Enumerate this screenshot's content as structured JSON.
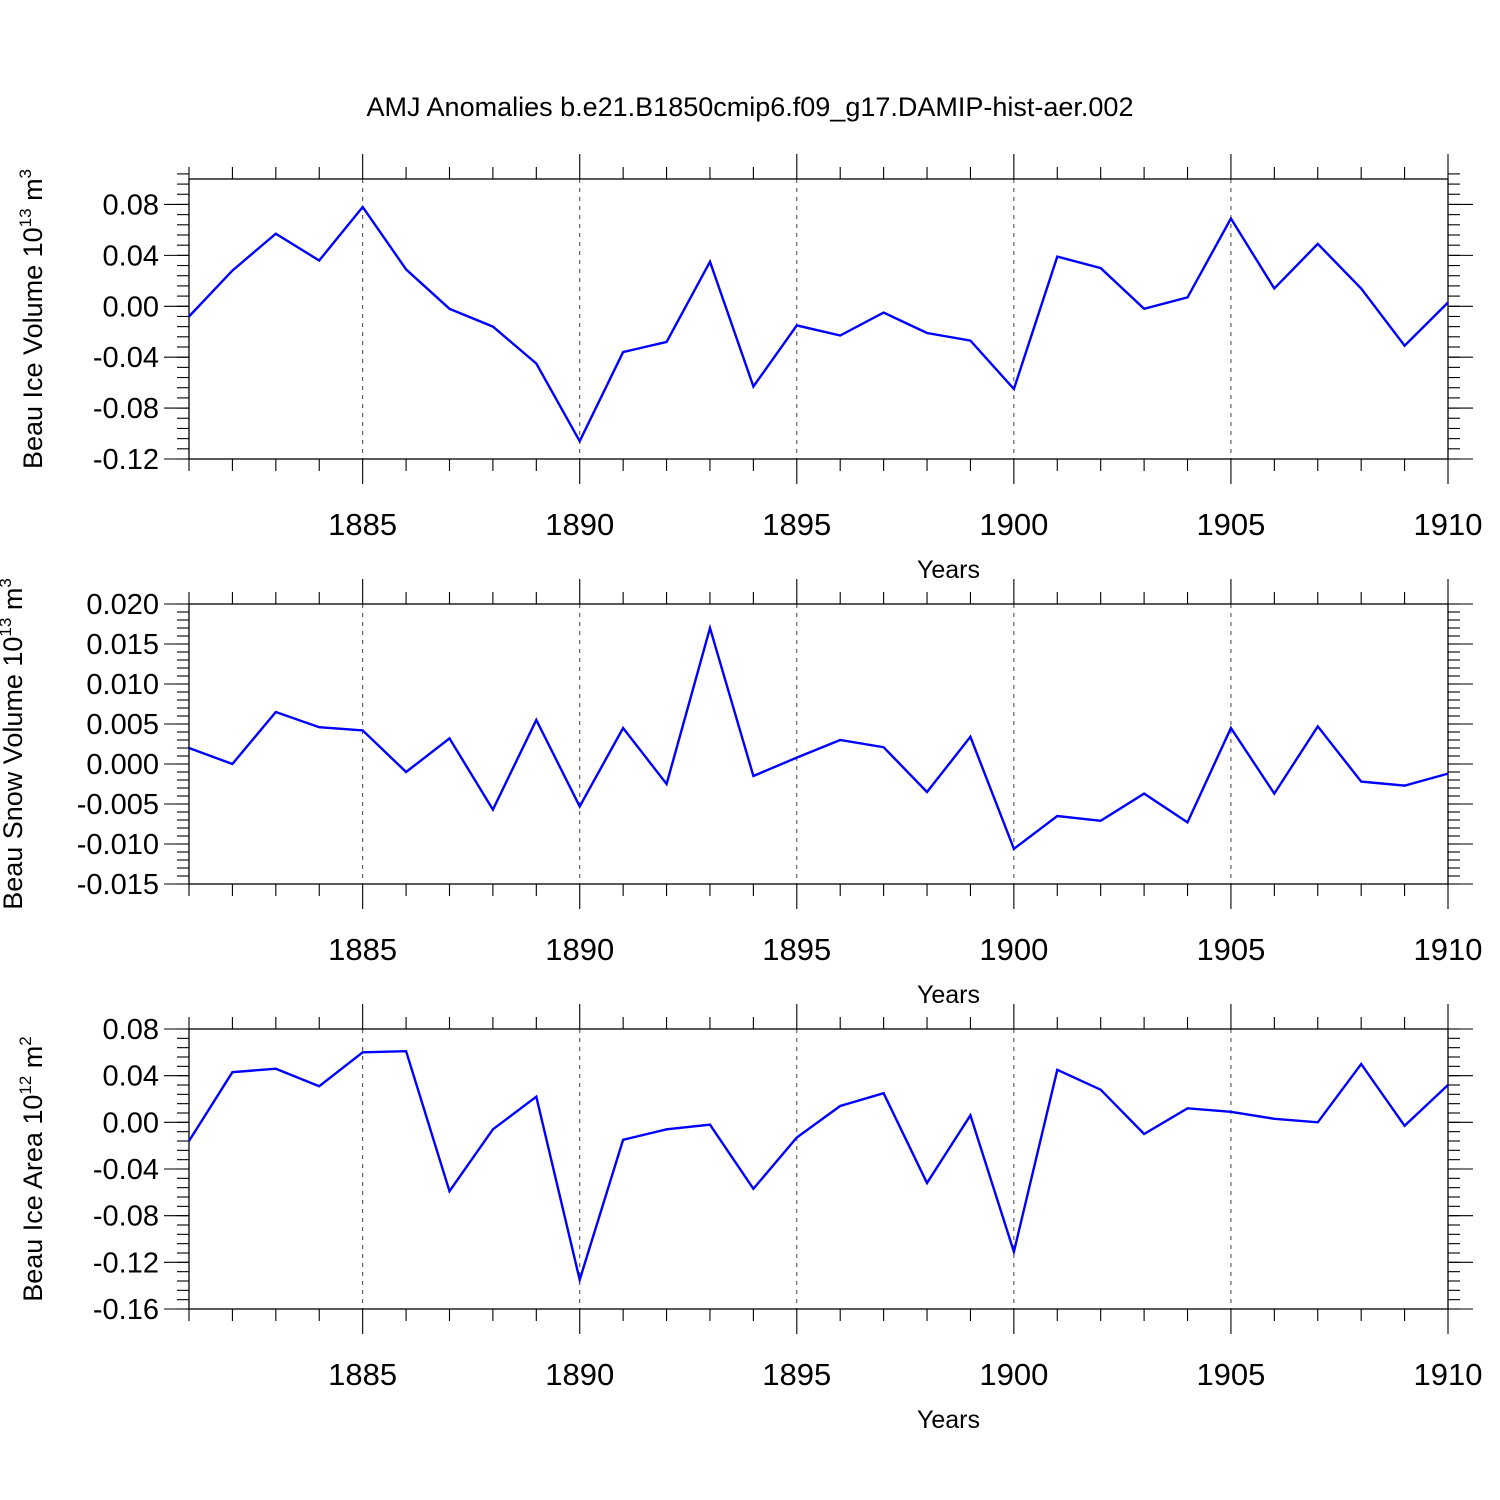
{
  "figure": {
    "title": "AMJ Anomalies b.e21.B1850cmip6.f09_g17.DAMIP-hist-aer.002"
  },
  "chart_data": [
    {
      "type": "line",
      "ylabel": "Beau Ice Volume 10",
      "ylabel_exp": "13",
      "ylabel_unit": " m",
      "ylabel_unit_exp": "3",
      "xlabel": "Years",
      "xlim": [
        1881,
        1910
      ],
      "ylim": [
        -0.12,
        0.1
      ],
      "x_ticks": [
        1885,
        1890,
        1895,
        1900,
        1905,
        1910
      ],
      "y_ticks": [
        "0.08",
        "0.04",
        "0.00",
        "-0.04",
        "-0.08",
        "-0.12"
      ],
      "y_tick_values": [
        0.08,
        0.04,
        0.0,
        -0.04,
        -0.08,
        -0.12
      ],
      "y_minor_step": 0.008,
      "grid": "vertical dashed at major x ticks",
      "x": [
        1881,
        1882,
        1883,
        1884,
        1885,
        1886,
        1887,
        1888,
        1889,
        1890,
        1891,
        1892,
        1893,
        1894,
        1895,
        1896,
        1897,
        1898,
        1899,
        1900,
        1901,
        1902,
        1903,
        1904,
        1905,
        1906,
        1907,
        1908,
        1909,
        1910
      ],
      "series": [
        {
          "color": "#0000ff",
          "values": [
            -0.008,
            0.028,
            0.057,
            0.036,
            0.078,
            0.029,
            -0.002,
            -0.016,
            -0.045,
            -0.106,
            -0.036,
            -0.028,
            0.035,
            -0.063,
            -0.015,
            -0.023,
            -0.005,
            -0.021,
            -0.027,
            -0.065,
            0.039,
            0.03,
            -0.002,
            0.007,
            0.069,
            0.014,
            0.049,
            0.014,
            -0.031,
            0.003
          ]
        }
      ]
    },
    {
      "type": "line",
      "ylabel": "Beau Snow Volume 10",
      "ylabel_exp": "13",
      "ylabel_unit": " m",
      "ylabel_unit_exp": "3",
      "xlabel": "Years",
      "xlim": [
        1881,
        1910
      ],
      "ylim": [
        -0.015,
        0.02
      ],
      "x_ticks": [
        1885,
        1890,
        1895,
        1900,
        1905,
        1910
      ],
      "y_ticks": [
        "0.020",
        "0.015",
        "0.010",
        "0.005",
        "0.000",
        "-0.005",
        "-0.010",
        "-0.015"
      ],
      "y_tick_values": [
        0.02,
        0.015,
        0.01,
        0.005,
        0.0,
        -0.005,
        -0.01,
        -0.015
      ],
      "y_minor_step": 0.001,
      "grid": "vertical dashed at major x ticks",
      "x": [
        1881,
        1882,
        1883,
        1884,
        1885,
        1886,
        1887,
        1888,
        1889,
        1890,
        1891,
        1892,
        1893,
        1894,
        1895,
        1896,
        1897,
        1898,
        1899,
        1900,
        1901,
        1902,
        1903,
        1904,
        1905,
        1906,
        1907,
        1908,
        1909,
        1910
      ],
      "series": [
        {
          "color": "#0000ff",
          "values": [
            0.002,
            0.0,
            0.0065,
            0.0046,
            0.0042,
            -0.001,
            0.0032,
            -0.0057,
            0.0055,
            -0.0053,
            0.0045,
            -0.0025,
            0.017,
            -0.0015,
            0.0008,
            0.003,
            0.0021,
            -0.0035,
            0.0034,
            -0.0106,
            -0.0065,
            -0.0071,
            -0.0037,
            -0.0073,
            0.0045,
            -0.0037,
            0.0047,
            -0.0022,
            -0.0027,
            -0.0012
          ]
        }
      ]
    },
    {
      "type": "line",
      "ylabel": "Beau Ice Area 10",
      "ylabel_exp": "12",
      "ylabel_unit": " m",
      "ylabel_unit_exp": "2",
      "xlabel": "Years",
      "xlim": [
        1881,
        1910
      ],
      "ylim": [
        -0.16,
        0.08
      ],
      "x_ticks": [
        1885,
        1890,
        1895,
        1900,
        1905,
        1910
      ],
      "y_ticks": [
        "0.08",
        "0.04",
        "0.00",
        "-0.04",
        "-0.08",
        "-0.12",
        "-0.16"
      ],
      "y_tick_values": [
        0.08,
        0.04,
        0.0,
        -0.04,
        -0.08,
        -0.12,
        -0.16
      ],
      "y_minor_step": 0.008,
      "grid": "vertical dashed at major x ticks",
      "x": [
        1881,
        1882,
        1883,
        1884,
        1885,
        1886,
        1887,
        1888,
        1889,
        1890,
        1891,
        1892,
        1893,
        1894,
        1895,
        1896,
        1897,
        1898,
        1899,
        1900,
        1901,
        1902,
        1903,
        1904,
        1905,
        1906,
        1907,
        1908,
        1909,
        1910
      ],
      "series": [
        {
          "color": "#0000ff",
          "values": [
            -0.016,
            0.043,
            0.046,
            0.031,
            0.06,
            0.061,
            -0.059,
            -0.006,
            0.022,
            -0.135,
            -0.015,
            -0.006,
            -0.002,
            -0.057,
            -0.013,
            0.014,
            0.025,
            -0.052,
            0.006,
            -0.111,
            0.045,
            0.028,
            -0.01,
            0.012,
            0.009,
            0.003,
            0.0,
            0.05,
            -0.003,
            0.032
          ]
        }
      ]
    }
  ]
}
